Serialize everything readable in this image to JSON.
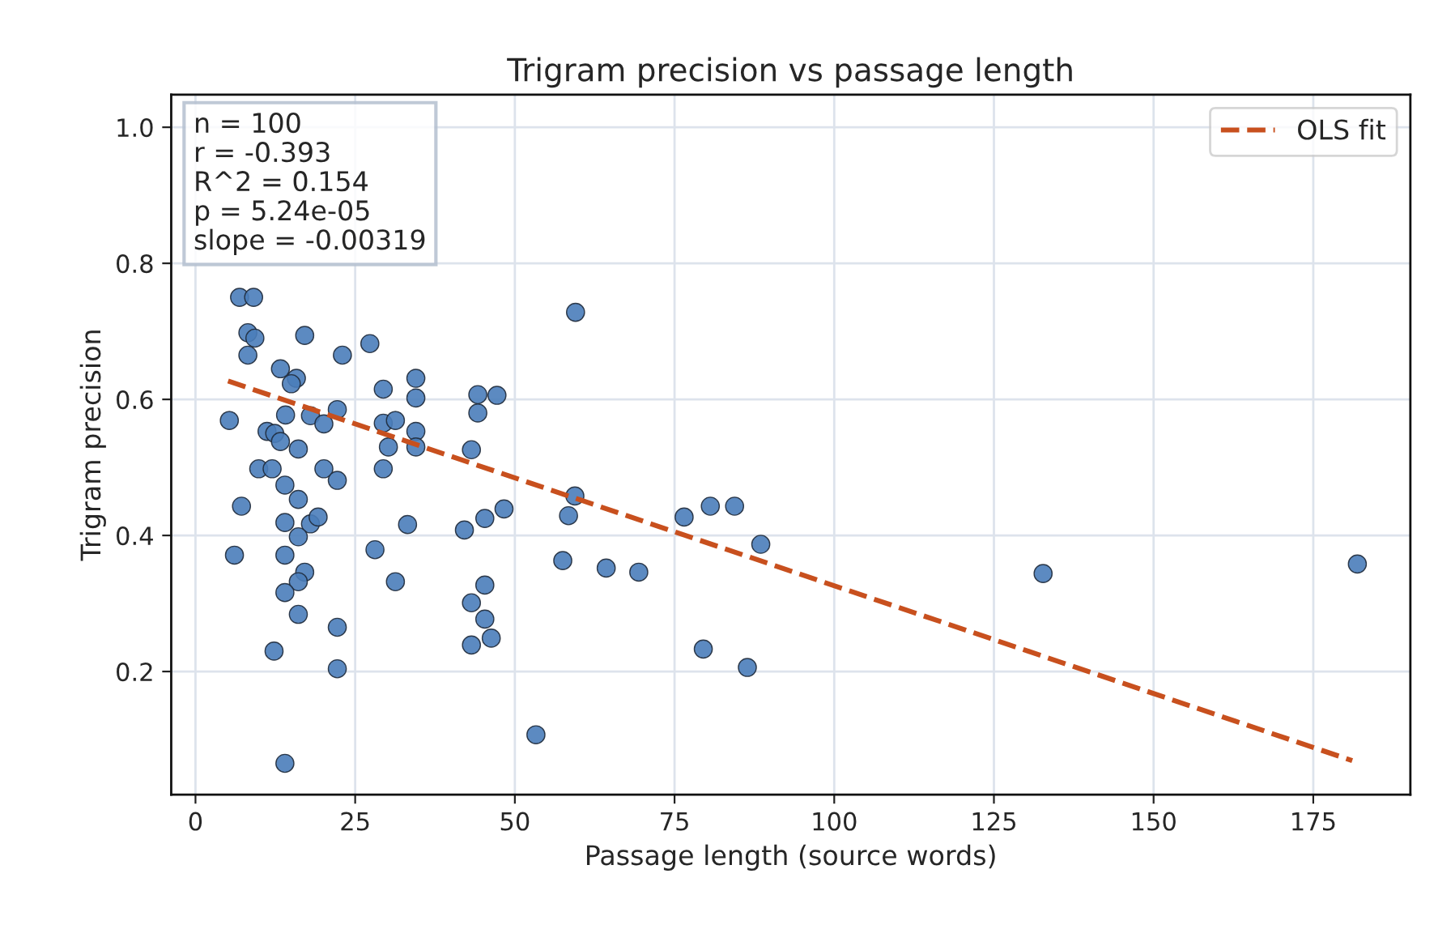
{
  "chart_data": {
    "type": "scatter",
    "title": "Trigram precision vs passage length",
    "xlabel": "Passage length (source words)",
    "ylabel": "Trigram precision",
    "xlim": [
      -3.8,
      190.2
    ],
    "ylim": [
      0.019,
      1.048
    ],
    "xticks": [
      0,
      25,
      50,
      75,
      100,
      125,
      150,
      175
    ],
    "yticks": [
      0.2,
      0.4,
      0.6,
      0.8,
      {
        "value": 1.0,
        "label": "1.0"
      }
    ],
    "grid": true,
    "legend": "top right",
    "marker": "circle",
    "annotations": [
      "n = 100\nr = -0.393\nR^2 = 0.154\np = 5.24e-05\nslope = -0.00319"
    ],
    "series": [
      {
        "color": "#4a7dba",
        "x": [
          6.9,
          9.1,
          8.2,
          9.3,
          17.1,
          8.2,
          23.0,
          27.3,
          13.3,
          15.8,
          15.0,
          29.4,
          34.5,
          34.5,
          44.2,
          47.2,
          44.2,
          5.3,
          14.1,
          11.2,
          12.4,
          13.3,
          16.1,
          18.0,
          20.1,
          22.2,
          29.4,
          31.3,
          34.5,
          30.2,
          34.5,
          43.2,
          9.9,
          12.0,
          20.1,
          22.2,
          29.4,
          14.0,
          16.1,
          7.2,
          14.0,
          18.0,
          19.2,
          16.1,
          6.1,
          14.0,
          33.2,
          28.1,
          31.3,
          42.1,
          45.3,
          17.1,
          16.1,
          14.0,
          16.1,
          22.2,
          12.3,
          22.2,
          14.0,
          43.2,
          45.3,
          45.3,
          43.2,
          46.3,
          59.5,
          59.4,
          58.4,
          48.3,
          57.5,
          64.3,
          69.4,
          76.5,
          80.6,
          84.4,
          88.5,
          79.5,
          86.4,
          53.3,
          132.7,
          181.9
        ],
        "values": [
          0.75,
          0.75,
          0.698,
          0.69,
          0.694,
          0.665,
          0.665,
          0.682,
          0.645,
          0.631,
          0.623,
          0.615,
          0.631,
          0.602,
          0.607,
          0.606,
          0.58,
          0.569,
          0.577,
          0.553,
          0.55,
          0.538,
          0.527,
          0.576,
          0.564,
          0.585,
          0.565,
          0.569,
          0.553,
          0.53,
          0.53,
          0.526,
          0.498,
          0.498,
          0.498,
          0.481,
          0.498,
          0.474,
          0.453,
          0.443,
          0.419,
          0.417,
          0.427,
          0.398,
          0.371,
          0.371,
          0.416,
          0.379,
          0.332,
          0.408,
          0.425,
          0.346,
          0.332,
          0.316,
          0.284,
          0.265,
          0.23,
          0.204,
          0.065,
          0.301,
          0.327,
          0.277,
          0.239,
          0.249,
          0.728,
          0.458,
          0.429,
          0.439,
          0.363,
          0.352,
          0.346,
          0.427,
          0.443,
          0.443,
          0.387,
          0.233,
          0.206,
          0.107,
          0.344,
          0.358
        ]
      },
      {
        "type": "line",
        "name": "OLS fit",
        "color": "#c8501e",
        "line_style": "dashed",
        "marker": "none",
        "x": [
          5.1,
          181.1
        ],
        "values": [
          0.627,
          0.069
        ]
      }
    ]
  }
}
